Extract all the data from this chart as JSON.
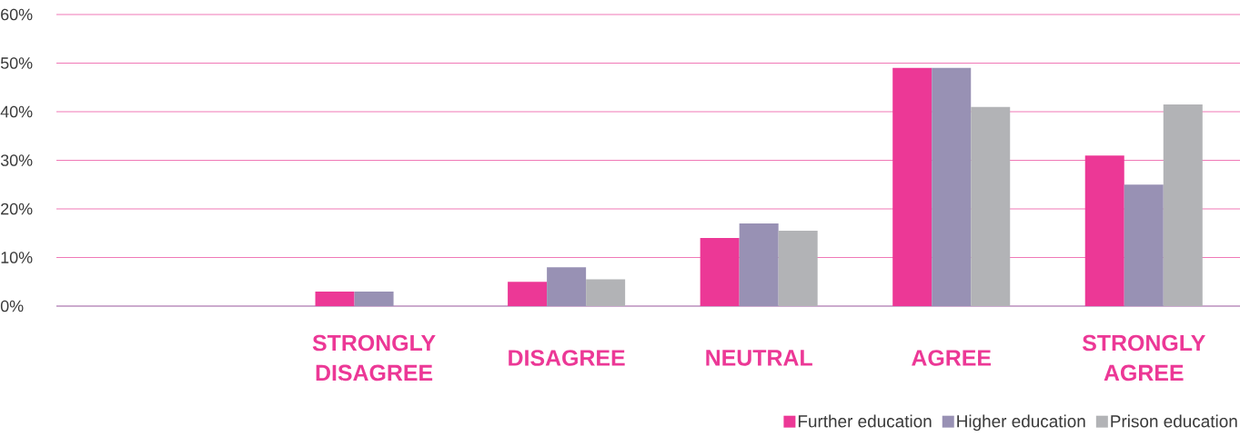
{
  "chart_data": {
    "type": "bar",
    "categories": [
      null,
      "STRONGLY DISAGREE",
      "DISAGREE",
      "NEUTRAL",
      "AGREE",
      "STRONGLY AGREE"
    ],
    "series": [
      {
        "name": "Further education",
        "color": "#ec3896",
        "values": [
          null,
          3,
          5,
          14,
          49,
          31
        ]
      },
      {
        "name": "Higher education",
        "color": "#9891b4",
        "values": [
          null,
          3,
          8,
          17,
          49,
          25
        ]
      },
      {
        "name": "Prison education",
        "color": "#b2b3b6",
        "values": [
          null,
          0,
          5.5,
          15.5,
          41,
          41.5
        ]
      }
    ],
    "ylim": [
      0,
      60
    ],
    "yticks": [
      {
        "value": 0,
        "label": "0%"
      },
      {
        "value": 10,
        "label": "10%"
      },
      {
        "value": 20,
        "label": "20%"
      },
      {
        "value": 30,
        "label": "30%"
      },
      {
        "value": 40,
        "label": "40%"
      },
      {
        "value": 50,
        "label": "50%"
      },
      {
        "value": 60,
        "label": "60%"
      }
    ],
    "grid": "y",
    "legend": "bottom right"
  }
}
